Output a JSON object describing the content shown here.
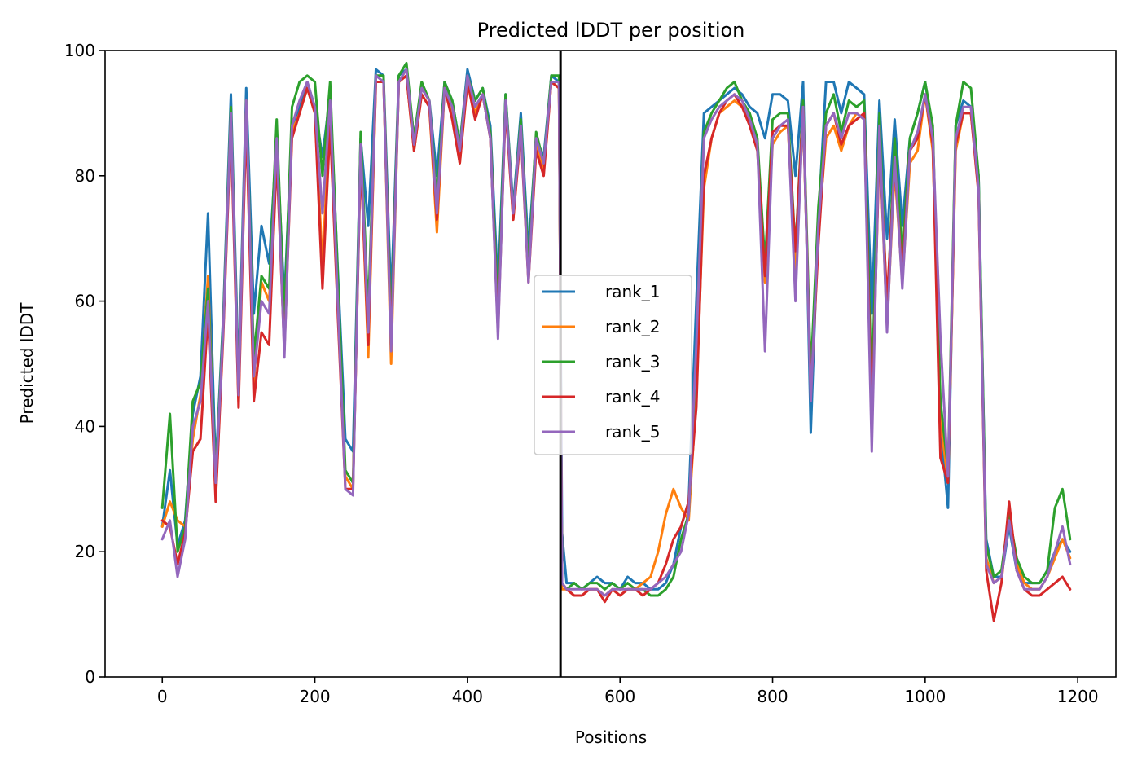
{
  "chart_data": {
    "type": "line",
    "title": "Predicted lDDT per position",
    "xlabel": "Positions",
    "ylabel": "Predicted lDDT",
    "xlim": [
      -75,
      1250
    ],
    "ylim": [
      0,
      100
    ],
    "xticks": [
      0,
      200,
      400,
      600,
      800,
      1000,
      1200
    ],
    "yticks": [
      0,
      20,
      40,
      60,
      80,
      100
    ],
    "xtick_labels": [
      "0",
      "200",
      "400",
      "600",
      "800",
      "1000",
      "1200"
    ],
    "ytick_labels": [
      "0",
      "20",
      "40",
      "60",
      "80",
      "100"
    ],
    "vline_x": 522,
    "grid": false,
    "legend_position": "center",
    "x": [
      0,
      10,
      20,
      30,
      40,
      50,
      60,
      70,
      80,
      90,
      100,
      110,
      120,
      130,
      140,
      150,
      160,
      170,
      180,
      190,
      200,
      210,
      220,
      230,
      240,
      250,
      260,
      270,
      280,
      290,
      300,
      310,
      320,
      330,
      340,
      350,
      360,
      370,
      380,
      390,
      400,
      410,
      420,
      430,
      440,
      450,
      460,
      470,
      480,
      490,
      500,
      510,
      520,
      524,
      530,
      540,
      550,
      560,
      570,
      580,
      590,
      600,
      610,
      620,
      630,
      640,
      650,
      660,
      670,
      680,
      690,
      700,
      710,
      720,
      730,
      740,
      750,
      760,
      770,
      780,
      790,
      800,
      810,
      820,
      830,
      840,
      850,
      860,
      870,
      880,
      890,
      900,
      910,
      920,
      930,
      940,
      950,
      960,
      970,
      980,
      990,
      1000,
      1010,
      1020,
      1030,
      1040,
      1050,
      1060,
      1070,
      1080,
      1090,
      1100,
      1110,
      1120,
      1130,
      1140,
      1150,
      1160,
      1170,
      1180,
      1190
    ],
    "series": [
      {
        "name": "rank_1",
        "color": "#1f77b4",
        "values": [
          24,
          33,
          21,
          25,
          42,
          48,
          74,
          33,
          58,
          93,
          48,
          94,
          58,
          72,
          66,
          86,
          60,
          88,
          91,
          95,
          91,
          83,
          93,
          65,
          38,
          36,
          86,
          72,
          97,
          96,
          60,
          96,
          97,
          86,
          94,
          92,
          80,
          95,
          92,
          85,
          97,
          92,
          94,
          88,
          62,
          93,
          75,
          90,
          68,
          86,
          83,
          96,
          95,
          23,
          15,
          15,
          14,
          15,
          16,
          15,
          15,
          14,
          16,
          15,
          15,
          14,
          14,
          15,
          18,
          24,
          28,
          60,
          90,
          91,
          92,
          93,
          94,
          93,
          91,
          90,
          86,
          93,
          93,
          92,
          80,
          95,
          39,
          73,
          95,
          95,
          90,
          95,
          94,
          93,
          58,
          92,
          70,
          89,
          72,
          86,
          90,
          95,
          87,
          40,
          27,
          88,
          92,
          91,
          80,
          22,
          16,
          16,
          24,
          17,
          15,
          15,
          15,
          17,
          20,
          22,
          20
        ]
      },
      {
        "name": "rank_2",
        "color": "#ff7f0e",
        "values": [
          24,
          28,
          25,
          24,
          38,
          45,
          64,
          30,
          56,
          90,
          44,
          92,
          47,
          63,
          60,
          84,
          55,
          87,
          90,
          94,
          90,
          66,
          90,
          60,
          32,
          30,
          84,
          51,
          95,
          95,
          50,
          95,
          96,
          84,
          93,
          91,
          71,
          94,
          90,
          82,
          95,
          90,
          93,
          86,
          56,
          92,
          73,
          88,
          65,
          85,
          81,
          95,
          94,
          14,
          14,
          13,
          13,
          14,
          14,
          13,
          14,
          13,
          14,
          14,
          15,
          16,
          20,
          26,
          30,
          27,
          25,
          45,
          78,
          86,
          90,
          91,
          92,
          91,
          89,
          85,
          63,
          85,
          87,
          88,
          64,
          90,
          46,
          71,
          86,
          88,
          84,
          88,
          90,
          89,
          41,
          86,
          56,
          81,
          63,
          82,
          84,
          93,
          84,
          41,
          31,
          84,
          90,
          90,
          78,
          19,
          15,
          16,
          26,
          18,
          15,
          14,
          14,
          16,
          19,
          22,
          19
        ]
      },
      {
        "name": "rank_3",
        "color": "#2ca02c",
        "values": [
          27,
          42,
          20,
          24,
          44,
          47,
          62,
          32,
          57,
          91,
          46,
          92,
          51,
          64,
          62,
          89,
          57,
          91,
          95,
          96,
          95,
          80,
          95,
          64,
          33,
          31,
          87,
          58,
          96,
          96,
          55,
          96,
          98,
          86,
          95,
          92,
          76,
          95,
          92,
          85,
          96,
          92,
          94,
          87,
          58,
          93,
          74,
          89,
          65,
          87,
          82,
          96,
          96,
          15,
          14,
          15,
          14,
          15,
          15,
          14,
          15,
          14,
          15,
          14,
          14,
          13,
          13,
          14,
          16,
          22,
          26,
          52,
          87,
          90,
          92,
          94,
          95,
          92,
          90,
          86,
          66,
          89,
          90,
          90,
          68,
          92,
          48,
          75,
          90,
          93,
          87,
          92,
          91,
          92,
          45,
          90,
          58,
          86,
          67,
          86,
          90,
          95,
          88,
          44,
          33,
          88,
          95,
          94,
          80,
          21,
          16,
          17,
          26,
          19,
          16,
          15,
          15,
          17,
          27,
          30,
          22
        ]
      },
      {
        "name": "rank_4",
        "color": "#d62728",
        "values": [
          25,
          24,
          18,
          23,
          36,
          38,
          58,
          28,
          55,
          88,
          43,
          89,
          44,
          55,
          53,
          83,
          52,
          86,
          90,
          94,
          90,
          62,
          88,
          58,
          30,
          30,
          83,
          53,
          95,
          95,
          53,
          95,
          96,
          84,
          93,
          91,
          73,
          94,
          89,
          82,
          95,
          89,
          93,
          86,
          55,
          91,
          73,
          87,
          63,
          84,
          80,
          95,
          94,
          15,
          14,
          13,
          13,
          14,
          14,
          12,
          14,
          13,
          14,
          14,
          13,
          14,
          15,
          18,
          22,
          24,
          28,
          43,
          80,
          86,
          90,
          92,
          93,
          91,
          88,
          84,
          64,
          87,
          88,
          88,
          68,
          91,
          45,
          69,
          88,
          90,
          85,
          88,
          89,
          90,
          40,
          85,
          60,
          82,
          64,
          84,
          86,
          93,
          85,
          35,
          31,
          85,
          90,
          90,
          77,
          17,
          9,
          15,
          28,
          17,
          14,
          13,
          13,
          14,
          15,
          16,
          14
        ]
      },
      {
        "name": "rank_5",
        "color": "#9467bd",
        "values": [
          22,
          25,
          16,
          22,
          40,
          44,
          60,
          31,
          56,
          90,
          45,
          92,
          48,
          60,
          58,
          86,
          51,
          88,
          92,
          95,
          91,
          74,
          92,
          60,
          30,
          29,
          85,
          55,
          96,
          95,
          52,
          95,
          97,
          85,
          94,
          92,
          74,
          94,
          91,
          84,
          96,
          91,
          93,
          86,
          54,
          92,
          74,
          88,
          63,
          86,
          82,
          95,
          95,
          15,
          14,
          14,
          14,
          14,
          14,
          13,
          14,
          14,
          14,
          14,
          14,
          14,
          15,
          16,
          18,
          20,
          26,
          53,
          86,
          89,
          91,
          92,
          93,
          92,
          89,
          85,
          52,
          86,
          88,
          89,
          60,
          91,
          44,
          72,
          88,
          90,
          86,
          90,
          90,
          89,
          36,
          88,
          55,
          83,
          62,
          84,
          87,
          93,
          86,
          54,
          32,
          86,
          91,
          91,
          78,
          18,
          15,
          16,
          25,
          17,
          14,
          14,
          14,
          16,
          20,
          24,
          18
        ]
      }
    ]
  }
}
